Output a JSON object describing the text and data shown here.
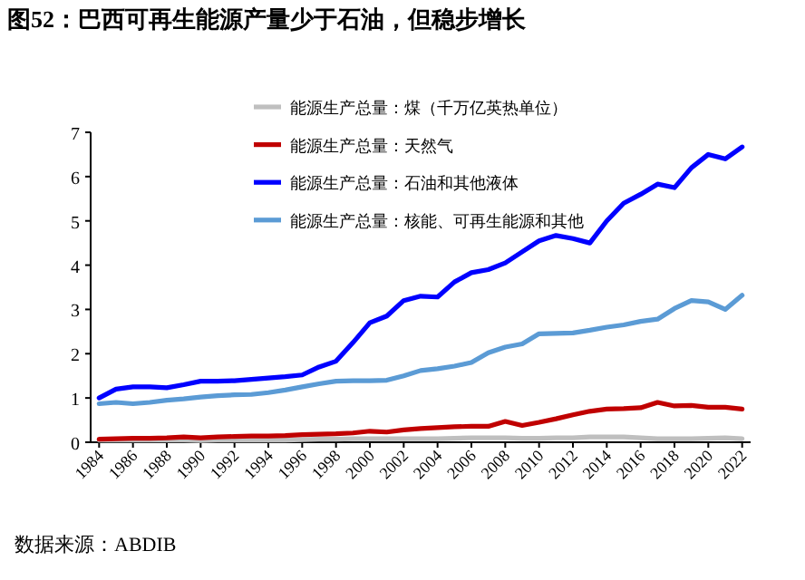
{
  "chart_data": {
    "type": "line",
    "title": "图52：巴西可再生能源产量少于石油，但稳步增长",
    "annotations": [
      "数据来源：ABDIB"
    ],
    "x": [
      1984,
      1985,
      1986,
      1987,
      1988,
      1989,
      1990,
      1991,
      1992,
      1993,
      1994,
      1995,
      1996,
      1997,
      1998,
      1999,
      2000,
      2001,
      2002,
      2003,
      2004,
      2005,
      2006,
      2007,
      2008,
      2009,
      2010,
      2011,
      2012,
      2013,
      2014,
      2015,
      2016,
      2017,
      2018,
      2019,
      2020,
      2021,
      2022
    ],
    "xlim": [
      1983.5,
      2022.5
    ],
    "xticks": [
      1984,
      1986,
      1988,
      1990,
      1992,
      1994,
      1996,
      1998,
      2000,
      2002,
      2004,
      2006,
      2008,
      2010,
      2012,
      2014,
      2016,
      2018,
      2020,
      2022
    ],
    "ylim": [
      0,
      7
    ],
    "yticks": [
      0,
      1,
      2,
      3,
      4,
      5,
      6,
      7
    ],
    "grid": false,
    "legend": "top left",
    "marker": "none",
    "line_style": "solid",
    "series": [
      {
        "name": "能源生产总量：煤（千万亿英热单位）",
        "color": "#bfbfbf",
        "values": [
          0.05,
          0.05,
          0.05,
          0.05,
          0.05,
          0.05,
          0.04,
          0.05,
          0.05,
          0.05,
          0.05,
          0.05,
          0.06,
          0.07,
          0.07,
          0.08,
          0.08,
          0.08,
          0.08,
          0.08,
          0.08,
          0.09,
          0.1,
          0.1,
          0.1,
          0.09,
          0.09,
          0.1,
          0.1,
          0.12,
          0.12,
          0.12,
          0.1,
          0.08,
          0.08,
          0.08,
          0.09,
          0.1,
          0.08
        ]
      },
      {
        "name": "能源生产总量：天然气",
        "color": "#c00000",
        "values": [
          0.07,
          0.08,
          0.09,
          0.09,
          0.1,
          0.12,
          0.1,
          0.12,
          0.13,
          0.14,
          0.14,
          0.15,
          0.17,
          0.18,
          0.19,
          0.21,
          0.25,
          0.23,
          0.28,
          0.31,
          0.33,
          0.35,
          0.36,
          0.36,
          0.47,
          0.38,
          0.45,
          0.53,
          0.62,
          0.7,
          0.75,
          0.76,
          0.78,
          0.9,
          0.82,
          0.83,
          0.79,
          0.79,
          0.75
        ]
      },
      {
        "name": "能源生产总量：石油和其他液体",
        "color": "#0000ff",
        "values": [
          1.0,
          1.2,
          1.25,
          1.25,
          1.23,
          1.3,
          1.38,
          1.38,
          1.39,
          1.42,
          1.45,
          1.48,
          1.52,
          1.7,
          1.83,
          2.25,
          2.7,
          2.85,
          3.2,
          3.3,
          3.28,
          3.62,
          3.83,
          3.9,
          4.05,
          4.3,
          4.55,
          4.67,
          4.6,
          4.5,
          5.0,
          5.4,
          5.6,
          5.83,
          5.75,
          6.2,
          6.5,
          6.4,
          6.67
        ]
      },
      {
        "name": "能源生产总量：核能、可再生能源和其他",
        "color": "#5b9bd5",
        "values": [
          0.87,
          0.9,
          0.87,
          0.9,
          0.95,
          0.98,
          1.02,
          1.05,
          1.07,
          1.08,
          1.12,
          1.18,
          1.25,
          1.32,
          1.38,
          1.39,
          1.39,
          1.4,
          1.5,
          1.62,
          1.66,
          1.72,
          1.8,
          2.02,
          2.15,
          2.22,
          2.45,
          2.46,
          2.47,
          2.53,
          2.6,
          2.65,
          2.73,
          2.78,
          3.02,
          3.2,
          3.17,
          3.0,
          3.32
        ]
      }
    ]
  }
}
